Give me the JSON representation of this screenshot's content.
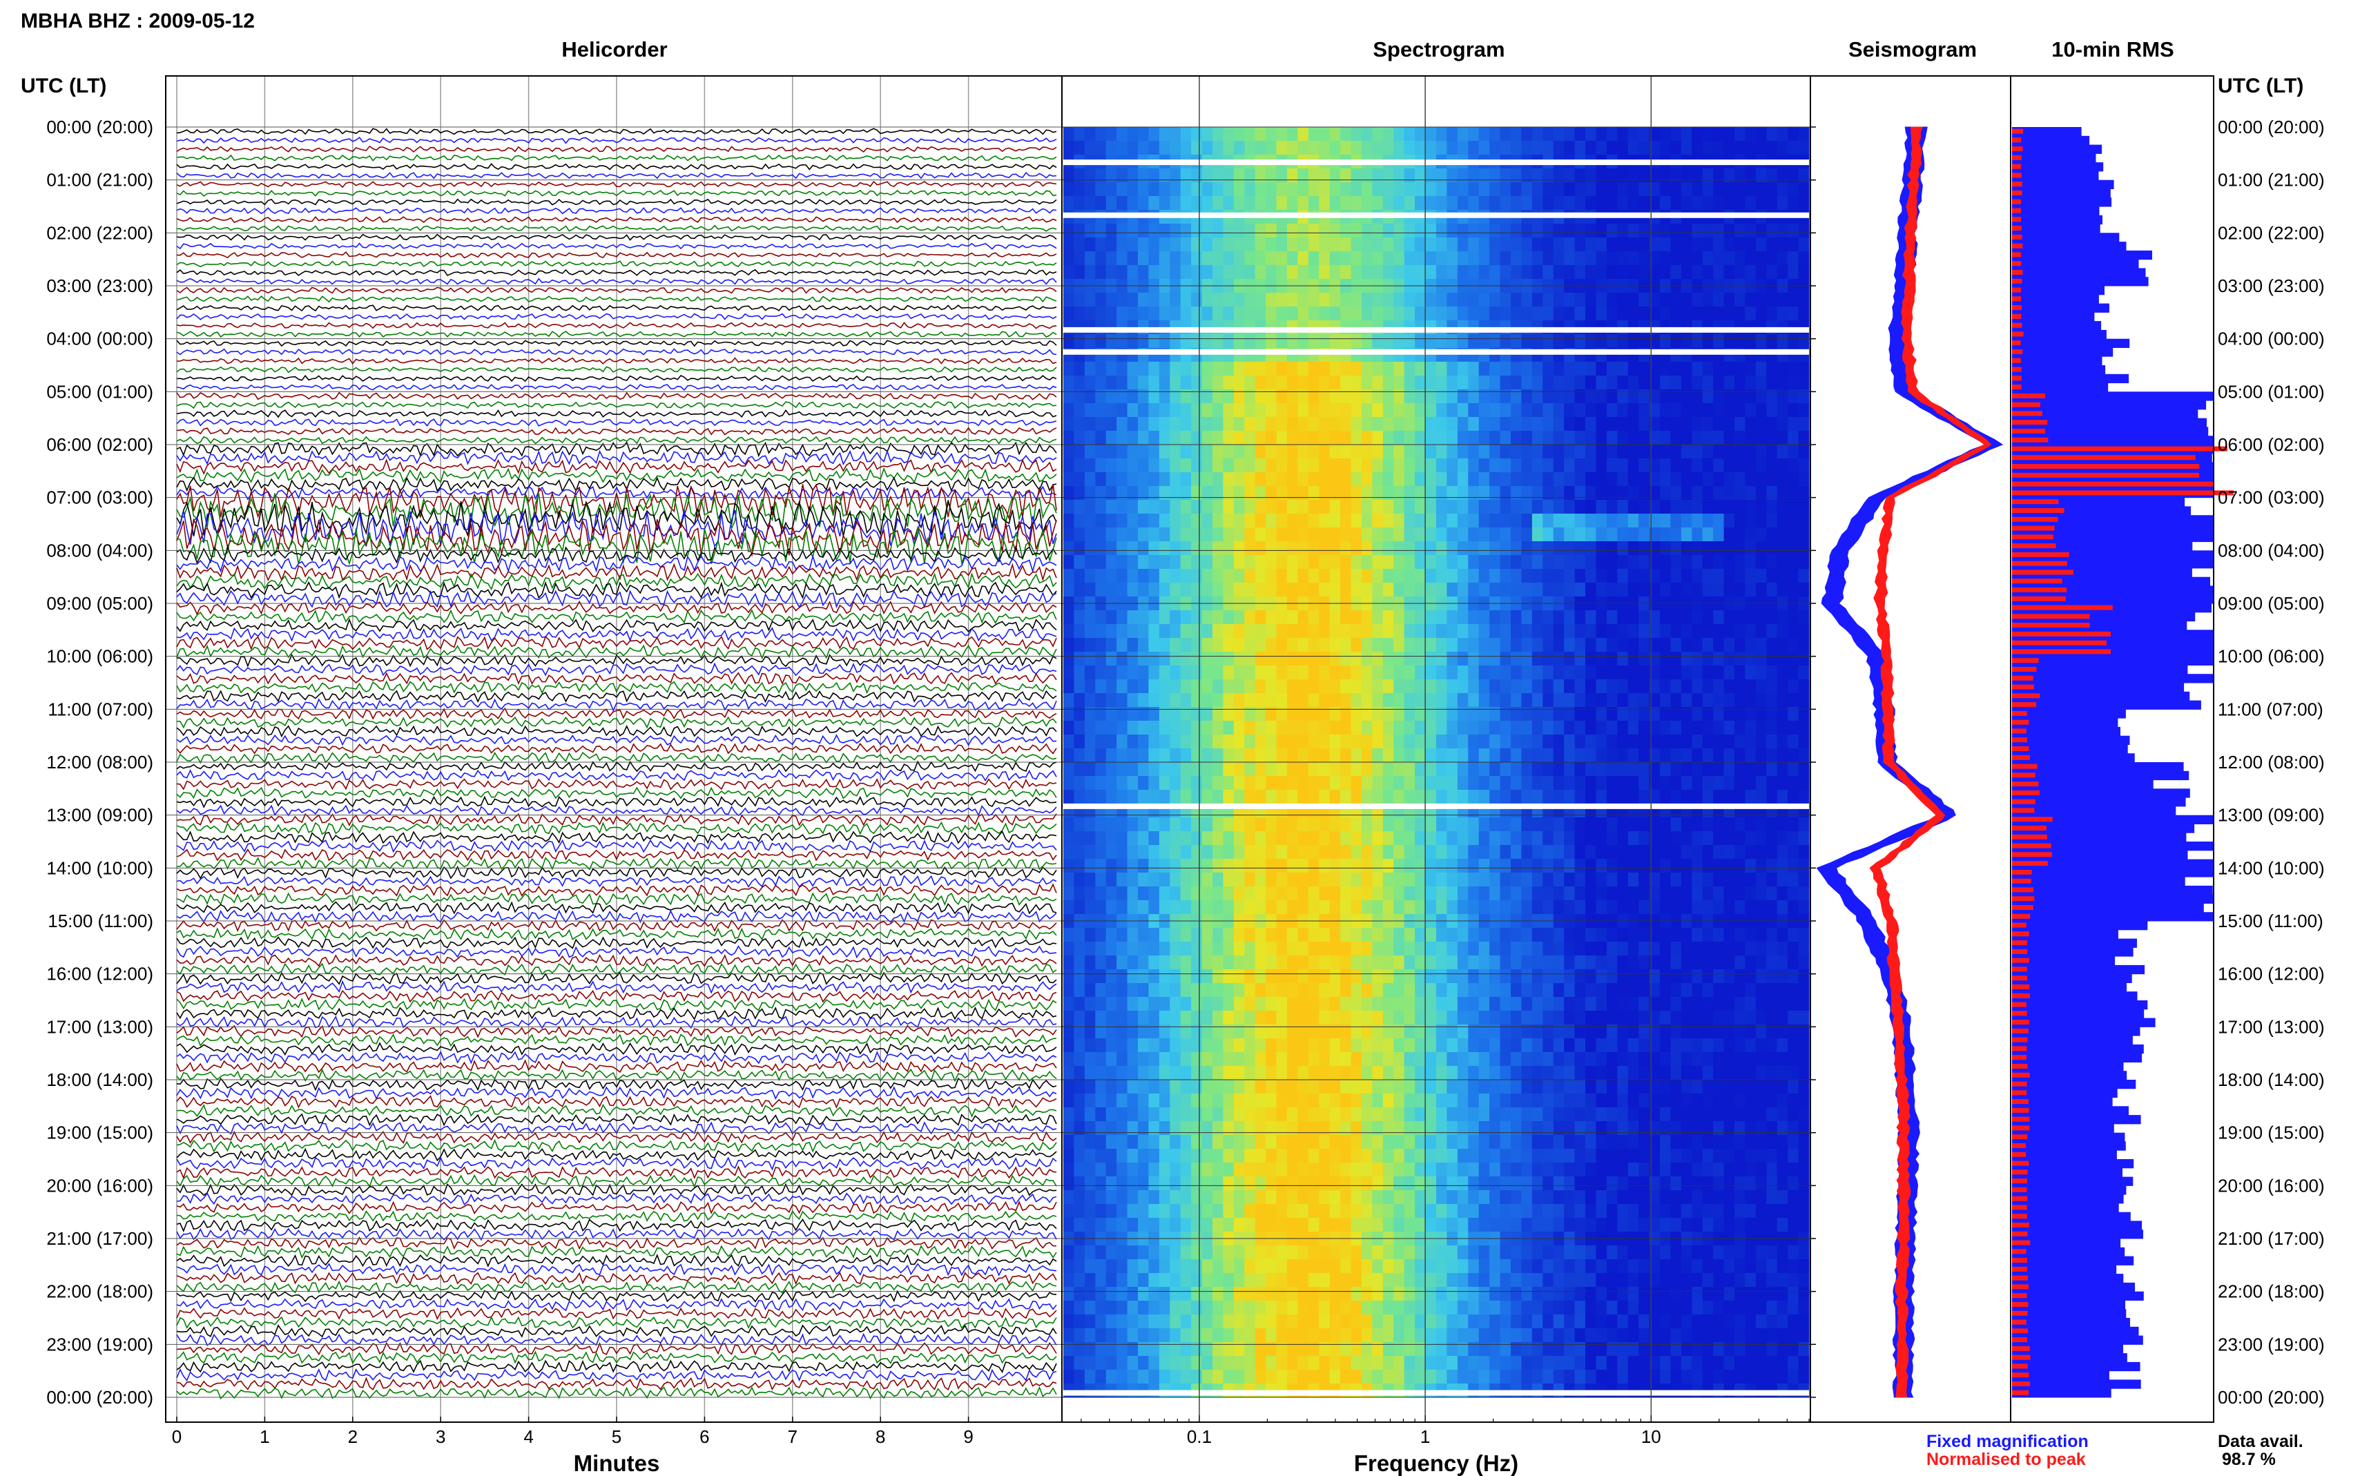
{
  "header": {
    "title": "MBHA BHZ : 2009-05-12",
    "time_axis_label": "UTC (LT)"
  },
  "panels": {
    "helicorder": "Helicorder",
    "spectrogram": "Spectrogram",
    "seismogram": "Seismogram",
    "rms": "10-min RMS"
  },
  "axes": {
    "minutes_label": "Minutes",
    "frequency_label": "Frequency (Hz)"
  },
  "legend": {
    "fixed": "Fixed magnification",
    "fixed_color": "#1a1aff",
    "normalised": "Normalised to peak",
    "normalised_color": "#ff1a1a"
  },
  "availability": {
    "label": "Data avail.",
    "value": "98.7 %"
  },
  "colors": {
    "trace_cycle": [
      "#000000",
      "#1a1aff",
      "#8b0000",
      "#008000"
    ],
    "spectro_low": "#0a1acc",
    "spectro_high": "#f0e020",
    "rms_fixed": "#1a1aff",
    "rms_norm": "#ff1a1a"
  },
  "chart_data": [
    {
      "type": "line",
      "title": "Helicorder",
      "xlabel": "Minutes",
      "x_ticks": [
        "0",
        "1",
        "2",
        "3",
        "4",
        "5",
        "6",
        "7",
        "8",
        "9"
      ],
      "xlim": [
        0,
        10
      ],
      "y_tick_labels_left": [
        "00:00 (20:00)",
        "01:00 (21:00)",
        "02:00 (22:00)",
        "03:00 (23:00)",
        "04:00 (00:00)",
        "05:00 (01:00)",
        "06:00 (02:00)",
        "07:00 (03:00)",
        "08:00 (04:00)",
        "09:00 (05:00)",
        "10:00 (06:00)",
        "11:00 (07:00)",
        "12:00 (08:00)",
        "13:00 (09:00)",
        "14:00 (10:00)",
        "15:00 (11:00)",
        "16:00 (12:00)",
        "17:00 (13:00)",
        "18:00 (14:00)",
        "19:00 (15:00)",
        "20:00 (16:00)",
        "21:00 (17:00)",
        "22:00 (18:00)",
        "23:00 (19:00)",
        "00:00 (20:00)"
      ],
      "traces_per_hour": 6,
      "hour_amplitude": [
        0.5,
        0.5,
        0.5,
        0.5,
        0.5,
        0.6,
        1.2,
        3.2,
        1.4,
        1.1,
        1.0,
        0.9,
        0.9,
        1.0,
        1.0,
        1.0,
        1.0,
        1.0,
        1.0,
        1.0,
        1.0,
        1.0,
        1.0,
        1.0
      ]
    },
    {
      "type": "heatmap",
      "title": "Spectrogram",
      "xlabel": "Frequency (Hz)",
      "x_scale": "log",
      "x_ticks": [
        "0.1",
        "1",
        "10"
      ],
      "xlim": [
        0.025,
        50
      ],
      "data_gaps_utc": [
        "00:40",
        "01:40",
        "03:50",
        "04:15",
        "12:50",
        "23:55"
      ]
    },
    {
      "type": "line",
      "title": "Seismogram",
      "series": [
        {
          "name": "Fixed magnification",
          "color": "#1a1aff",
          "hourly_offset": [
            0.52,
            0.5,
            0.47,
            0.45,
            0.42,
            0.45,
            0.95,
            0.3,
            0.1,
            0.05,
            0.3,
            0.34,
            0.36,
            0.7,
            0.02,
            0.25,
            0.38,
            0.44,
            0.46,
            0.48,
            0.47,
            0.46,
            0.45,
            0.45,
            0.45
          ]
        },
        {
          "name": "Normalised to peak",
          "color": "#ff1a1a",
          "hourly_offset": [
            0.52,
            0.51,
            0.49,
            0.48,
            0.47,
            0.5,
            0.92,
            0.38,
            0.34,
            0.32,
            0.36,
            0.36,
            0.37,
            0.66,
            0.3,
            0.38,
            0.4,
            0.42,
            0.44,
            0.45,
            0.45,
            0.45,
            0.44,
            0.44,
            0.44
          ]
        }
      ]
    },
    {
      "type": "bar",
      "title": "10-min RMS",
      "series": [
        {
          "name": "Fixed magnification",
          "color": "#1a1aff",
          "hourly_value": [
            0.4,
            0.48,
            0.62,
            0.48,
            0.52,
            1.0,
            1.0,
            1.0,
            1.0,
            1.0,
            1.0,
            0.55,
            0.78,
            1.0,
            1.0,
            0.6,
            0.62,
            0.6,
            0.58,
            0.6,
            0.61,
            0.6,
            0.58,
            0.56
          ]
        },
        {
          "name": "Normalised to peak",
          "color": "#ff1a1a",
          "hourly_value": [
            0.05,
            0.05,
            0.05,
            0.05,
            0.05,
            0.16,
            1.0,
            0.24,
            0.28,
            0.45,
            0.12,
            0.08,
            0.12,
            0.2,
            0.1,
            0.08,
            0.08,
            0.08,
            0.08,
            0.08,
            0.08,
            0.08,
            0.08,
            0.08
          ]
        }
      ]
    }
  ]
}
